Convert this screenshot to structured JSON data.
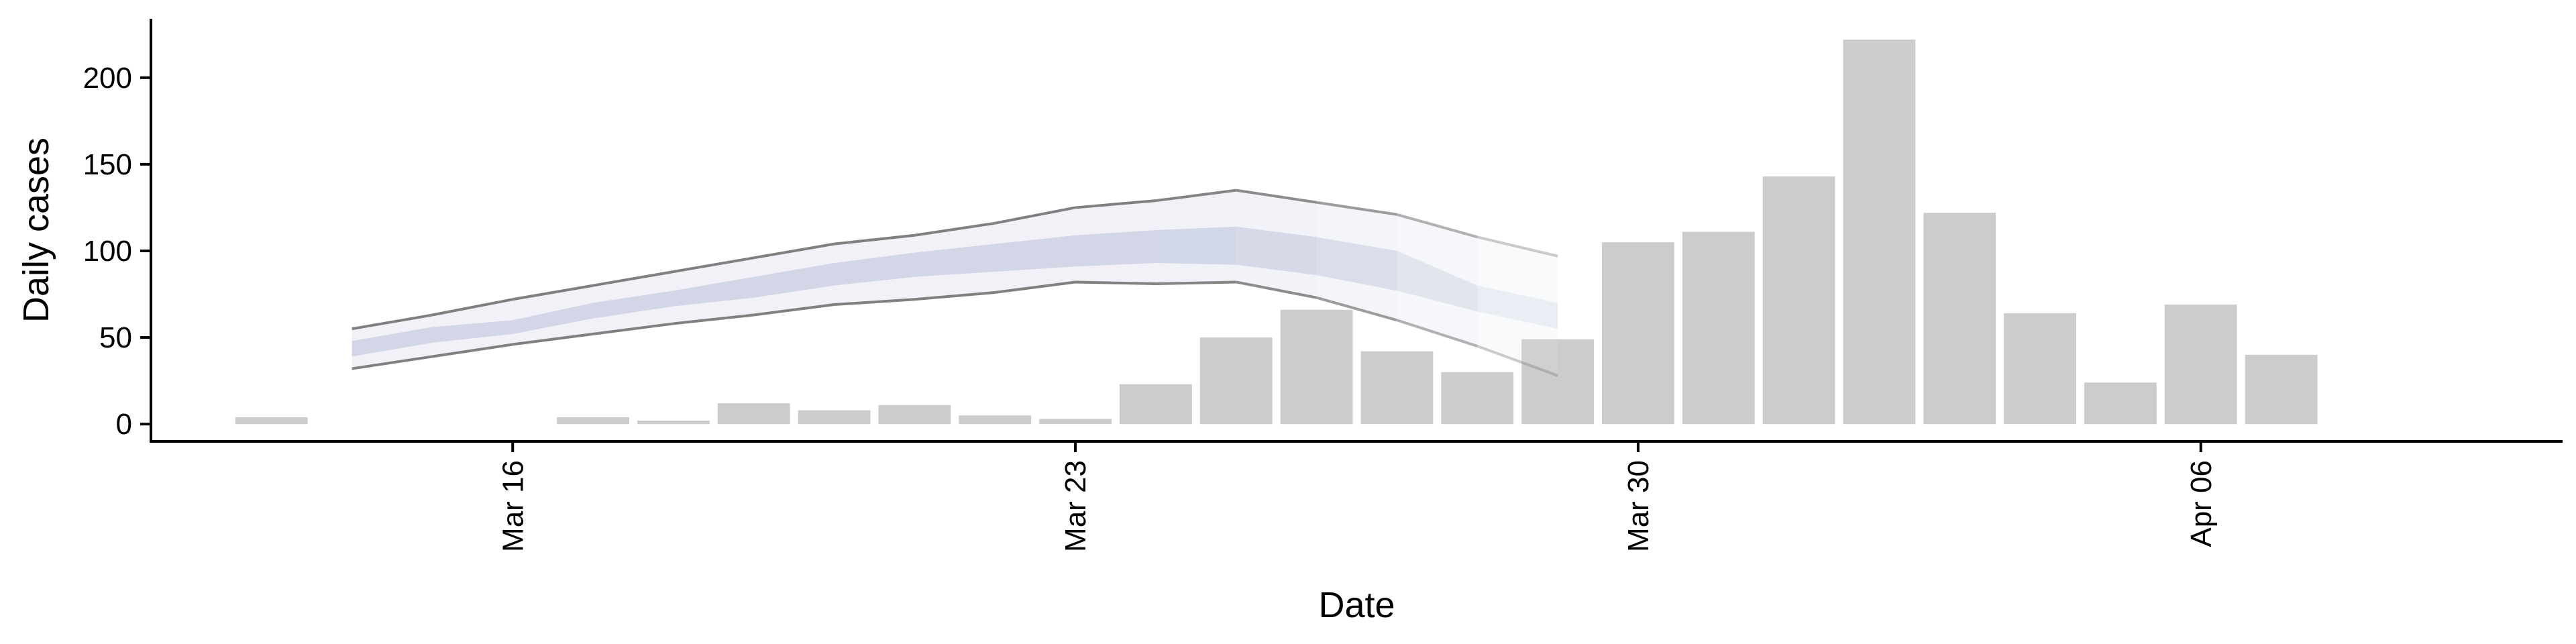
{
  "chart_data": {
    "type": "bar",
    "title": "",
    "xlabel": "Date",
    "ylabel": "Daily cases",
    "ylim": [
      -10,
      234
    ],
    "yticks": [
      0,
      50,
      100,
      150,
      200
    ],
    "x_range": [
      "2020-03-11T12:00",
      "2020-04-10T12:00"
    ],
    "xticks": [
      {
        "date": "2020-03-16",
        "label": "Mar 16"
      },
      {
        "date": "2020-03-23",
        "label": "Mar 23"
      },
      {
        "date": "2020-03-30",
        "label": "Mar 30"
      },
      {
        "date": "2020-04-06",
        "label": "Apr 06"
      }
    ],
    "grid": false,
    "legend": "none",
    "colors": {
      "bar": "#cccccc",
      "band_outer_fill": "#dfe1ee",
      "band_inner_fill": "#b8bfd8",
      "band_line": "#808080"
    },
    "bars": {
      "name": "Daily cases",
      "dates": [
        "2020-03-13",
        "2020-03-16",
        "2020-03-17",
        "2020-03-18",
        "2020-03-19",
        "2020-03-20",
        "2020-03-21",
        "2020-03-22",
        "2020-03-23",
        "2020-03-24",
        "2020-03-25",
        "2020-03-26",
        "2020-03-27",
        "2020-03-28",
        "2020-03-29",
        "2020-03-30",
        "2020-03-31",
        "2020-04-01",
        "2020-04-02",
        "2020-04-03",
        "2020-04-04",
        "2020-04-05",
        "2020-04-06",
        "2020-04-07"
      ],
      "values": [
        4,
        0,
        4,
        2,
        12,
        8,
        11,
        5,
        3,
        23,
        50,
        66,
        42,
        30,
        49,
        105,
        111,
        143,
        222,
        122,
        64,
        24,
        69,
        40
      ]
    },
    "estimate_band": {
      "dates": [
        "2020-03-14",
        "2020-03-15",
        "2020-03-16",
        "2020-03-17",
        "2020-03-18",
        "2020-03-19",
        "2020-03-20",
        "2020-03-21",
        "2020-03-22",
        "2020-03-23",
        "2020-03-24",
        "2020-03-25",
        "2020-03-26",
        "2020-03-27",
        "2020-03-28",
        "2020-03-29"
      ],
      "outer_upper": [
        55,
        63,
        72,
        80,
        88,
        96,
        104,
        109,
        116,
        125,
        129,
        135,
        128,
        121,
        108,
        97
      ],
      "outer_lower": [
        32,
        39,
        46,
        52,
        58,
        63,
        69,
        72,
        76,
        82,
        81,
        82,
        73,
        60,
        45,
        28
      ],
      "inner_upper": [
        48,
        56,
        60,
        70,
        77,
        85,
        93,
        99,
        104,
        109,
        112,
        114,
        108,
        100,
        80,
        70
      ],
      "inner_lower": [
        39,
        47,
        52,
        61,
        68,
        73,
        80,
        85,
        88,
        91,
        93,
        92,
        86,
        77,
        65,
        55
      ],
      "opacity": [
        1.0,
        1.0,
        1.0,
        1.0,
        1.0,
        1.0,
        1.0,
        1.0,
        1.0,
        1.0,
        1.0,
        0.95,
        0.85,
        0.7,
        0.5,
        0.3
      ]
    }
  }
}
